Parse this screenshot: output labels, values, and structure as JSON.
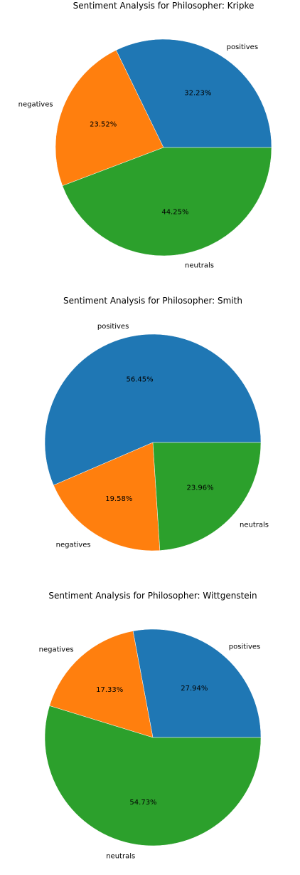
{
  "colors": {
    "positives": "#1f77b4",
    "negatives": "#ff7f0e",
    "neutrals": "#2ca02c"
  },
  "chart_data": [
    {
      "type": "pie",
      "title": "Sentiment Analysis for  Philosopher: Kripke",
      "labels": [
        "positives",
        "negatives",
        "neutrals"
      ],
      "values": [
        32.23,
        23.52,
        44.25
      ],
      "value_labels": [
        "32.23%",
        "23.52%",
        "44.25%"
      ]
    },
    {
      "type": "pie",
      "title": "Sentiment Analysis for  Philosopher: Smith",
      "labels": [
        "positives",
        "negatives",
        "neutrals"
      ],
      "values": [
        56.45,
        19.58,
        23.96
      ],
      "value_labels": [
        "56.45%",
        "19.58%",
        "23.96%"
      ]
    },
    {
      "type": "pie",
      "title": "Sentiment Analysis for  Philosopher: Wittgenstein",
      "labels": [
        "positives",
        "negatives",
        "neutrals"
      ],
      "values": [
        27.94,
        17.33,
        54.73
      ],
      "value_labels": [
        "27.94%",
        "17.33%",
        "54.73%"
      ]
    }
  ]
}
